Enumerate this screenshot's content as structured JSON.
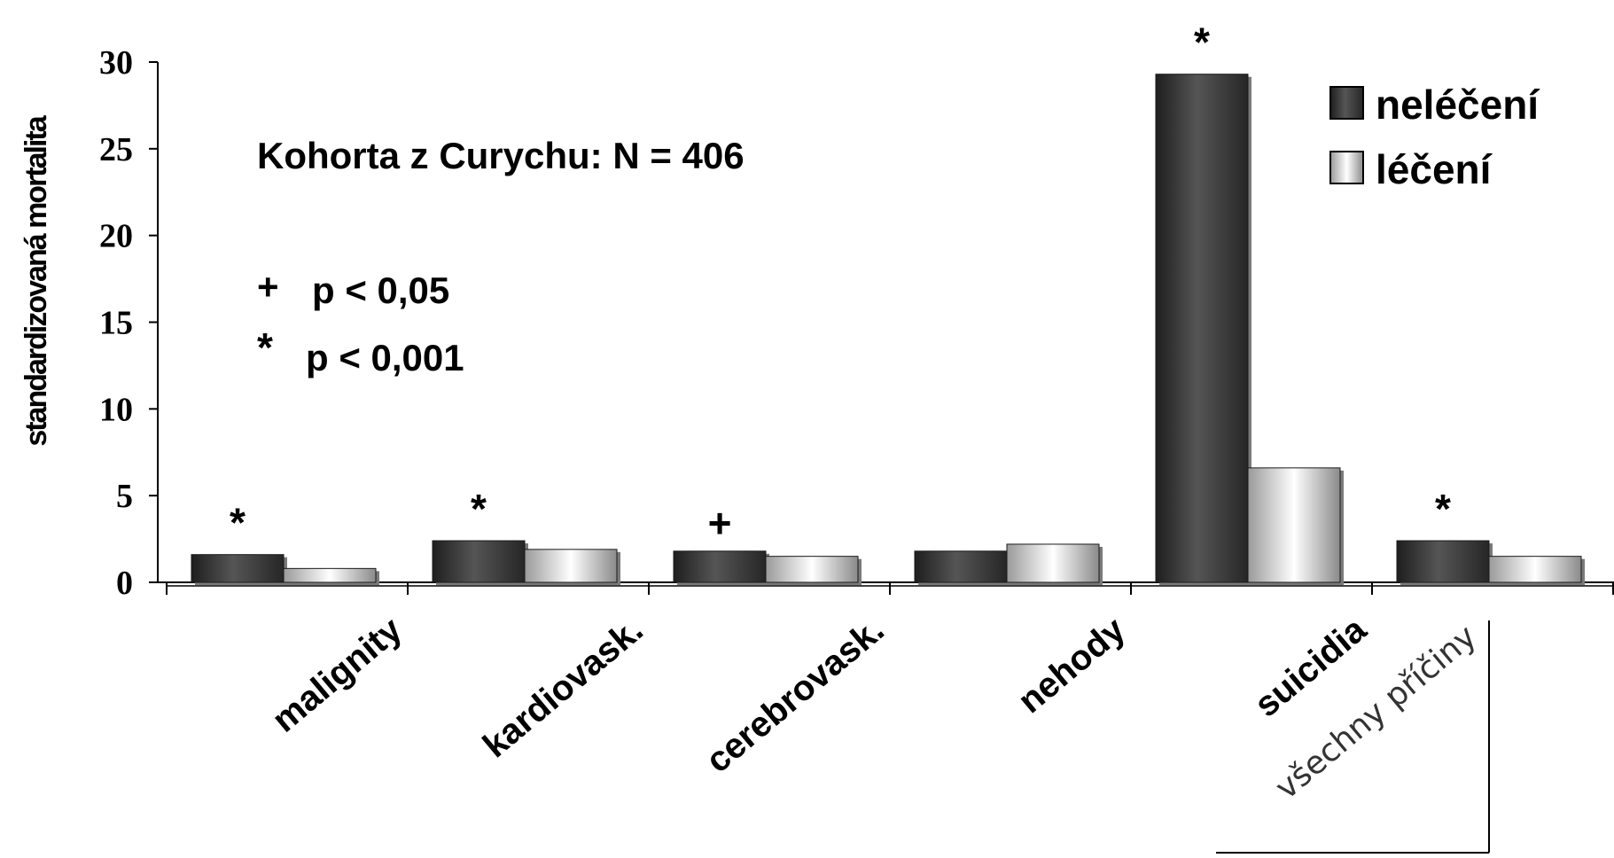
{
  "chart_data": {
    "type": "bar",
    "title": "",
    "ylabel": "standardizovaná mortalita",
    "xlabel": "",
    "ylim": [
      0,
      30
    ],
    "yticks": [
      "0",
      "5",
      "10",
      "15",
      "20",
      "25",
      "30"
    ],
    "categories": [
      "malignity",
      "kardiovask.",
      "cerebrovask.",
      "nehody",
      "suicidia",
      "všechny příčiny"
    ],
    "series": [
      {
        "name": "neléčení",
        "values": [
          1.6,
          2.4,
          1.8,
          1.8,
          29.3,
          2.4
        ],
        "color": "#3a3a3a"
      },
      {
        "name": "léčení",
        "values": [
          0.8,
          1.9,
          1.5,
          2.2,
          6.6,
          1.5
        ],
        "color": "#d9d9d9"
      }
    ],
    "significance": [
      "*",
      "*",
      "+",
      "",
      "*",
      "*"
    ],
    "annotations": {
      "cohort": "Kohorta z Curychu: N = 406",
      "plus_symbol": "+",
      "plus_text": "p < 0,05",
      "star_symbol": "*",
      "star_text": "p < 0,001"
    },
    "grid": false,
    "legend_position": "top-right"
  }
}
